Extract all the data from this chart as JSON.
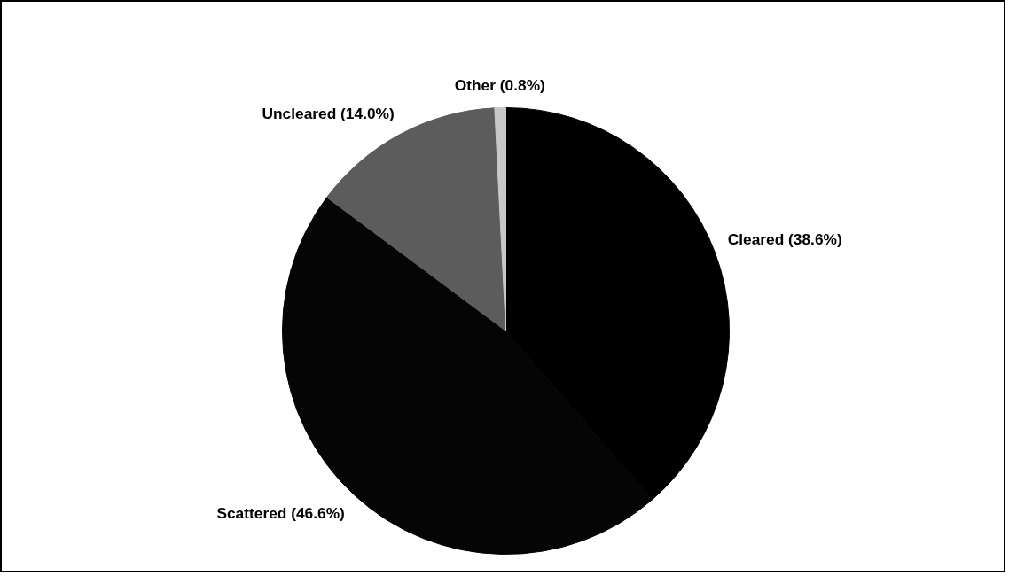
{
  "chart_data": {
    "type": "pie",
    "categories": [
      "Cleared",
      "Scattered",
      "Uncleared",
      "Other"
    ],
    "values": [
      38.6,
      46.6,
      14.0,
      0.8
    ],
    "colors": [
      "#000000",
      "#050505",
      "#5c5c5c",
      "#c8c8c8"
    ],
    "value_labels": [
      "(38.6%)",
      "(46.6%)",
      "(14.0%)",
      "(0.8%)"
    ]
  }
}
